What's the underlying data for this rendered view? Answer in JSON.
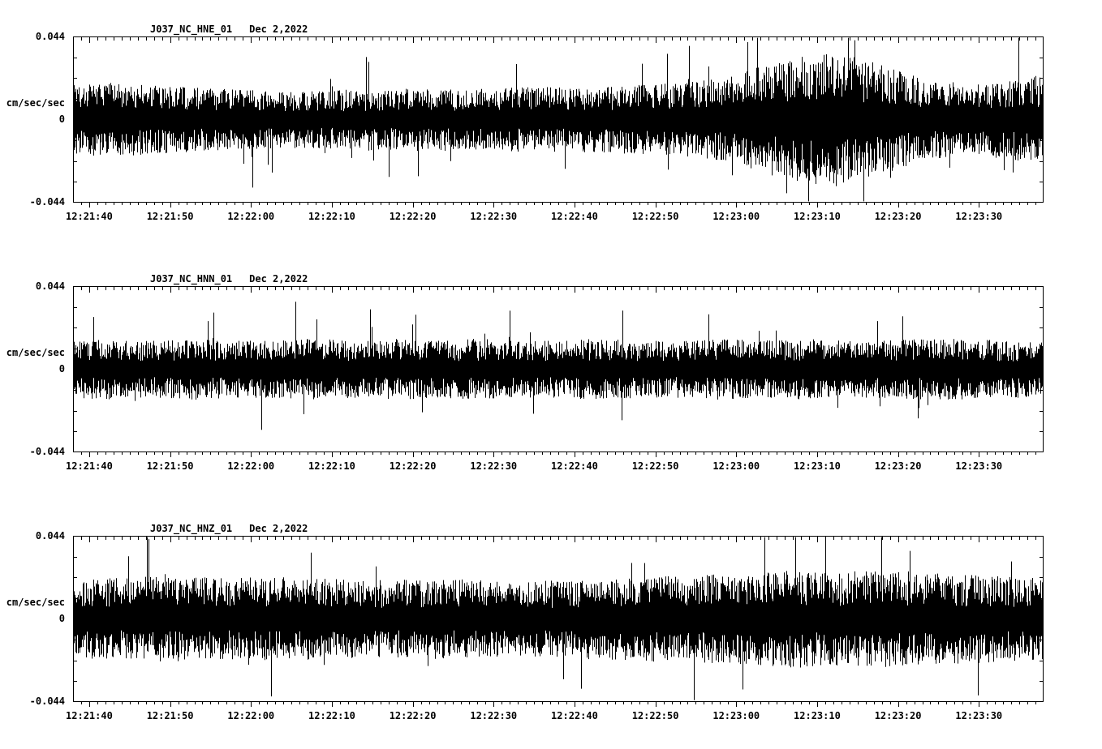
{
  "page": {
    "background": "#ffffff",
    "text_color": "#000000",
    "description": "Three-channel seismogram strip plot (accelerometer traces)"
  },
  "chart_data": [
    {
      "type": "waveform",
      "channel": "HNE",
      "station": "J037_NC_HNE_01",
      "date": "Dec 2,2022",
      "ylabel": "cm/sec/sec",
      "ylim": [
        -0.044,
        0.044
      ],
      "ytick_labels": [
        "0.044",
        "0",
        "-0.044"
      ],
      "x_start": "12:21:38",
      "x_end": "12:23:38",
      "duration_s": 120,
      "xtick_offsets_s": [
        2,
        12,
        22,
        32,
        42,
        52,
        62,
        72,
        82,
        92,
        102,
        112
      ],
      "xtick_labels": [
        "12:21:40",
        "12:21:50",
        "12:22:00",
        "12:22:10",
        "12:22:20",
        "12:22:30",
        "12:22:40",
        "12:22:50",
        "12:23:00",
        "12:23:10",
        "12:23:20",
        "12:23:30"
      ],
      "color": "#000000",
      "grid": false,
      "seed": 1337,
      "envelope": [
        0.019,
        0.018,
        0.017,
        0.016,
        0.015,
        0.014,
        0.014,
        0.015,
        0.015,
        0.016,
        0.015,
        0.016,
        0.016,
        0.016,
        0.017,
        0.018,
        0.02,
        0.026,
        0.031,
        0.033,
        0.027,
        0.02,
        0.018,
        0.019,
        0.022
      ],
      "spikes": [
        {
          "t": 0.185,
          "amp": -0.036
        },
        {
          "t": 0.355,
          "amp": -0.03
        },
        {
          "t": 0.635,
          "amp": 0.039
        },
        {
          "t": 0.695,
          "amp": 0.041
        },
        {
          "t": 0.735,
          "amp": -0.039
        },
        {
          "t": 0.805,
          "amp": 0.042
        }
      ]
    },
    {
      "type": "waveform",
      "channel": "HNN",
      "station": "J037_NC_HNN_01",
      "date": "Dec 2,2022",
      "ylabel": "cm/sec/sec",
      "ylim": [
        -0.044,
        0.044
      ],
      "ytick_labels": [
        "0.044",
        "0",
        "-0.044"
      ],
      "x_start": "12:21:38",
      "x_end": "12:23:38",
      "duration_s": 120,
      "xtick_offsets_s": [
        2,
        12,
        22,
        32,
        42,
        52,
        62,
        72,
        82,
        92,
        102,
        112
      ],
      "xtick_labels": [
        "12:21:40",
        "12:21:50",
        "12:22:00",
        "12:22:10",
        "12:22:20",
        "12:22:30",
        "12:22:40",
        "12:22:50",
        "12:23:00",
        "12:23:10",
        "12:23:20",
        "12:23:30"
      ],
      "color": "#000000",
      "grid": false,
      "seed": 4242,
      "envelope": [
        0.014,
        0.015,
        0.014,
        0.015,
        0.014,
        0.014,
        0.015,
        0.014,
        0.015,
        0.014,
        0.015,
        0.014,
        0.014,
        0.015,
        0.014,
        0.014,
        0.015,
        0.014,
        0.015,
        0.014,
        0.014,
        0.015,
        0.015,
        0.014,
        0.014
      ],
      "spikes": [
        {
          "t": 0.145,
          "amp": 0.03
        },
        {
          "t": 0.45,
          "amp": 0.031
        },
        {
          "t": 0.565,
          "amp": -0.027
        },
        {
          "t": 0.87,
          "amp": -0.026
        }
      ]
    },
    {
      "type": "waveform",
      "channel": "HNZ",
      "station": "J037_NC_HNZ_01",
      "date": "Dec 2,2022",
      "ylabel": "cm/sec/sec",
      "ylim": [
        -0.044,
        0.044
      ],
      "ytick_labels": [
        "0.044",
        "0",
        "-0.044"
      ],
      "x_start": "12:21:38",
      "x_end": "12:23:38",
      "duration_s": 120,
      "xtick_offsets_s": [
        2,
        12,
        22,
        32,
        42,
        52,
        62,
        72,
        82,
        92,
        102,
        112
      ],
      "xtick_labels": [
        "12:21:40",
        "12:21:50",
        "12:22:00",
        "12:22:10",
        "12:22:20",
        "12:22:30",
        "12:22:40",
        "12:22:50",
        "12:23:00",
        "12:23:10",
        "12:23:20",
        "12:23:30"
      ],
      "color": "#000000",
      "grid": false,
      "seed": 9001,
      "envelope": [
        0.019,
        0.02,
        0.021,
        0.021,
        0.02,
        0.021,
        0.02,
        0.019,
        0.019,
        0.02,
        0.019,
        0.018,
        0.019,
        0.02,
        0.021,
        0.021,
        0.022,
        0.023,
        0.024,
        0.023,
        0.024,
        0.023,
        0.022,
        0.021,
        0.02
      ],
      "spikes": [
        {
          "t": 0.245,
          "amp": 0.034
        },
        {
          "t": 0.505,
          "amp": -0.032
        },
        {
          "t": 0.775,
          "amp": 0.044
        },
        {
          "t": 0.862,
          "amp": 0.036
        }
      ]
    }
  ]
}
